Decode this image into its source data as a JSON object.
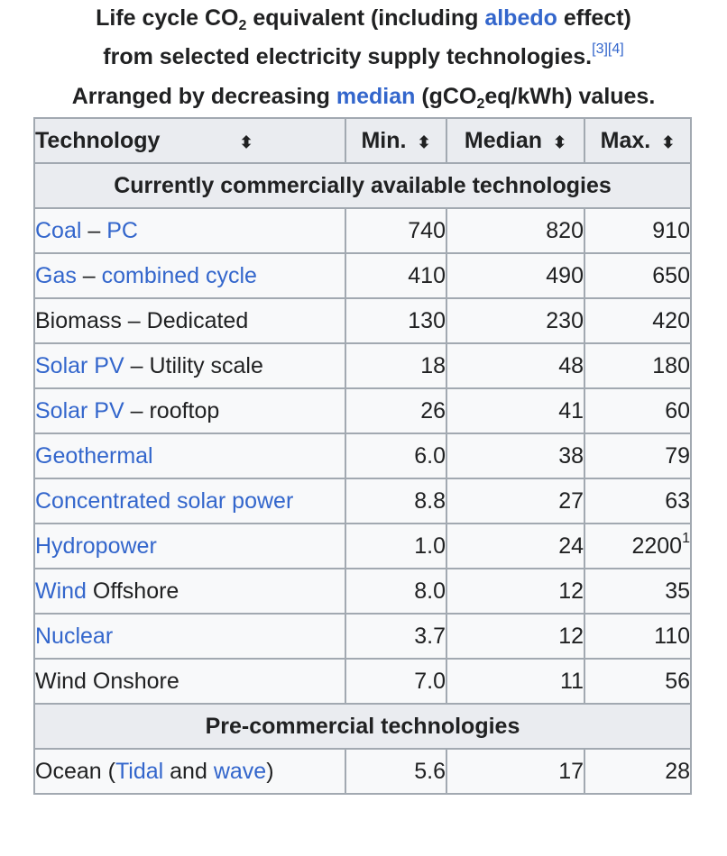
{
  "caption": {
    "line1_prefix": "Life cycle CO",
    "line1_sub": "2",
    "line1_mid": " equivalent (including ",
    "line1_link": "albedo",
    "line1_suffix": " effect)",
    "line2_text": "from selected electricity supply technologies.",
    "ref1": "[3]",
    "ref2": "[4]",
    "line3_prefix": "Arranged by decreasing ",
    "line3_link": "median",
    "line3_mid": " (gCO",
    "line3_sub": "2",
    "line3_suffix": "eq/kWh) values."
  },
  "headers": {
    "technology": "Technology",
    "min": "Min.",
    "median": "Median",
    "max": "Max.",
    "sort_icon": "⬍"
  },
  "sections": {
    "commercial": "Currently commercially available technologies",
    "precommercial": "Pre-commercial technologies"
  },
  "rows": [
    {
      "link1": "Coal",
      "sep": " – ",
      "link2": "PC",
      "min": "740",
      "median": "820",
      "max": "910"
    },
    {
      "link1": "Gas",
      "sep": " – ",
      "link2": "combined cycle",
      "min": "410",
      "median": "490",
      "max": "650"
    },
    {
      "plain": "Biomass – Dedicated",
      "min": "130",
      "median": "230",
      "max": "420"
    },
    {
      "link1": "Solar PV",
      "rest": " – Utility scale",
      "min": "18",
      "median": "48",
      "max": "180"
    },
    {
      "link1": "Solar PV",
      "rest": " – rooftop",
      "min": "26",
      "median": "41",
      "max": "60"
    },
    {
      "link1": "Geothermal",
      "min": "6.0",
      "median": "38",
      "max": "79"
    },
    {
      "link1": "Concentrated solar power",
      "min": "8.8",
      "median": "27",
      "max": "63"
    },
    {
      "link1": "Hydropower",
      "min": "1.0",
      "median": "24",
      "max": "2200",
      "max_note": "1"
    },
    {
      "link1": "Wind",
      "rest": " Offshore",
      "min": "8.0",
      "median": "12",
      "max": "35"
    },
    {
      "link1": "Nuclear",
      "min": "3.7",
      "median": "12",
      "max": "110"
    },
    {
      "plain": "Wind Onshore",
      "min": "7.0",
      "median": "11",
      "max": "56"
    }
  ],
  "precommercial_rows": [
    {
      "pre": "Ocean (",
      "link1": "Tidal",
      "mid": " and ",
      "link2": "wave",
      "post": ")",
      "min": "5.6",
      "median": "17",
      "max": "28"
    }
  ]
}
